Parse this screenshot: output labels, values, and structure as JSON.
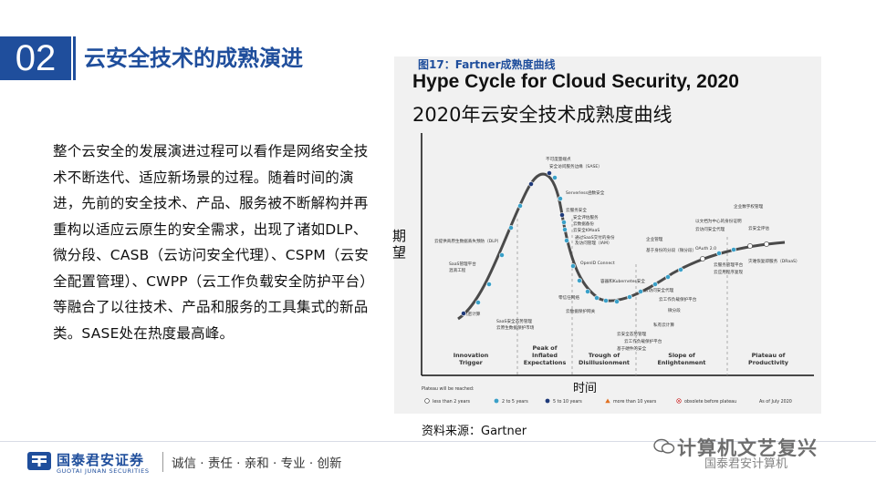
{
  "section": {
    "number": "02",
    "title": "云安全技术的成熟演进"
  },
  "body": {
    "paragraph": "整个云安全的发展演进过程可以看作是网络安全技术不断迭代、适应新场景的过程。随着时间的演进，先前的安全技术、产品、服务被不断解构并再重构以适应云原生的安全需求，出现了诸如DLP、微分段、CASB（云访问安全代理）、CSPM（云安全配置管理）、CWPP（云工作负载安全防护平台）等融合了以往技术、产品和服务的工具集式的新品类。SASE处在热度最高峰。"
  },
  "figure": {
    "caption": "图17：Fartner成熟度曲线",
    "title_en": "Hype Cycle for Cloud Security, 2020",
    "title_cn": "2020年云安全技术成熟度曲线",
    "ylabel": "期望",
    "xlabel": "时间",
    "source": "资料来源：Gartner",
    "plateau_label": "Plateau will be reached:",
    "as_of": "As of July 2020",
    "legend": [
      {
        "label": "less than 2 years",
        "color": "#ffffff",
        "shape": "circle-open"
      },
      {
        "label": "2 to 5 years",
        "color": "#3aa0c8",
        "shape": "circle"
      },
      {
        "label": "5 to 10 years",
        "color": "#1f3a7a",
        "shape": "circle"
      },
      {
        "label": "more than 10 years",
        "color": "#e07020",
        "shape": "triangle"
      },
      {
        "label": "obsolete before plateau",
        "color": "#c83030",
        "shape": "x-circle"
      }
    ],
    "phases": [
      [
        "Innovation",
        "Trigger"
      ],
      [
        "Peak of",
        "Inflated",
        "Expectations"
      ],
      [
        "Trough of",
        "Disillusionment"
      ],
      [
        "Slope of",
        "Enlightenment"
      ],
      [
        "Plateau of",
        "Productivity"
      ]
    ],
    "labels": [
      "不可度量端点",
      "安全访问服务边缘（SASE）",
      "Serverless函数安全",
      "云服务安全",
      "安全评估服务",
      "云数据备份",
      "云安全KMaaS",
      "通过SaaS交付的身份",
      "及访问管理（IAM）",
      "OpenID Connect",
      "云提供商原生数据丢失预防（DLP）",
      "SaaS管理平台",
      "混淆工程",
      "机密计算",
      "SaaS安全态势管理",
      "云原生数据保护市场",
      "容器和Kubernetes安全",
      "零信任网络",
      "云数据保护网关",
      "云安全态势管理",
      "云工作负载保护平台",
      "基于硬件的安全",
      "云访问安全代理",
      "云工作负载保护平台",
      "微分段",
      "企业管理",
      "基于身份的分段（微分段）",
      "私有云计算",
      "企业数字权管理",
      "以文档为中心的身份证明",
      "云安全评估",
      "OAuth 2.0",
      "云服务管理平台",
      "灾难恢复即服务（DRaaS）",
      "云应用程序复现",
      "云访问安全代理"
    ]
  },
  "footer": {
    "company_cn": "国泰君安证券",
    "company_en": "GUOTAI JUNAN SECURITIES",
    "slogan": "诚信 · 责任 · 亲和 · 专业 · 创新",
    "watermark": "计算机文艺复兴",
    "watermark_sub": "国泰君安计算机"
  }
}
